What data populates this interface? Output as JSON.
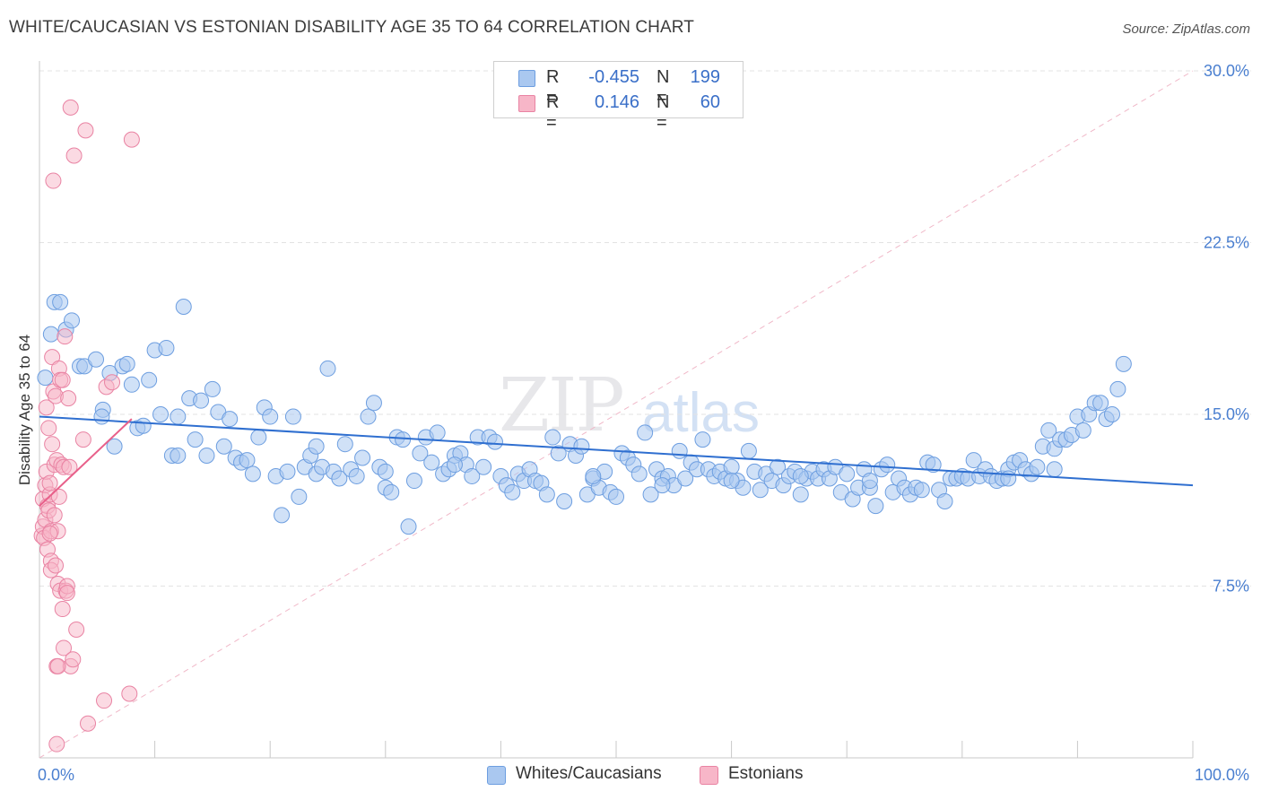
{
  "title": "WHITE/CAUCASIAN VS ESTONIAN DISABILITY AGE 35 TO 64 CORRELATION CHART",
  "source": "Source: ZipAtlas.com",
  "watermark": {
    "zip": "ZIP",
    "atlas": "atlas"
  },
  "legend": {
    "rows": [
      {
        "r_label": "R =",
        "r_value": "-0.455",
        "n_label": "N =",
        "n_value": "199",
        "color": "#aac8f0",
        "border": "#6d9ee0"
      },
      {
        "r_label": "R =",
        "r_value": "0.146",
        "n_label": "N =",
        "n_value": "60",
        "color": "#f7b6c8",
        "border": "#e983a3"
      }
    ]
  },
  "bottom_legend": [
    {
      "label": "Whites/Caucasians",
      "color": "#aac8f0",
      "border": "#6d9ee0"
    },
    {
      "label": "Estonians",
      "color": "#f7b6c8",
      "border": "#e983a3"
    }
  ],
  "chart_data": {
    "type": "scatter",
    "title": "WHITE/CAUCASIAN VS ESTONIAN DISABILITY AGE 35 TO 64 CORRELATION CHART",
    "xlabel": "",
    "ylabel": "Disability Age 35 to 64",
    "xlim": [
      0,
      100
    ],
    "ylim": [
      0,
      30
    ],
    "x_tick_labels": [
      "0.0%",
      "100.0%"
    ],
    "y_ticks": [
      7.5,
      15.0,
      22.5,
      30.0
    ],
    "y_tick_labels": [
      "7.5%",
      "15.0%",
      "22.5%",
      "30.0%"
    ],
    "grid": "horizontal dashed",
    "legend_position": "top-center",
    "series": [
      {
        "name": "Whites/Caucasians",
        "color": "#6d9ee0",
        "fill": "#aac8f0",
        "trend": {
          "x": [
            0,
            100
          ],
          "y": [
            14.9,
            11.9
          ]
        },
        "points": [
          [
            0.5,
            16.6
          ],
          [
            1.0,
            18.5
          ],
          [
            1.3,
            19.9
          ],
          [
            1.8,
            19.9
          ],
          [
            2.3,
            18.7
          ],
          [
            2.8,
            19.1
          ],
          [
            3.5,
            17.1
          ],
          [
            3.9,
            17.1
          ],
          [
            4.9,
            17.4
          ],
          [
            5.5,
            15.2
          ],
          [
            5.4,
            14.9
          ],
          [
            6.1,
            16.8
          ],
          [
            6.5,
            13.6
          ],
          [
            7.2,
            17.1
          ],
          [
            7.6,
            17.2
          ],
          [
            8.0,
            16.3
          ],
          [
            8.5,
            14.4
          ],
          [
            9.0,
            14.5
          ],
          [
            9.5,
            16.5
          ],
          [
            10.0,
            17.8
          ],
          [
            10.5,
            15.0
          ],
          [
            11.0,
            17.9
          ],
          [
            11.5,
            13.2
          ],
          [
            12.0,
            14.9
          ],
          [
            12.5,
            19.7
          ],
          [
            13.0,
            15.7
          ],
          [
            13.5,
            13.9
          ],
          [
            14.0,
            15.6
          ],
          [
            14.5,
            13.2
          ],
          [
            15.0,
            16.1
          ],
          [
            15.5,
            15.1
          ],
          [
            16.0,
            13.6
          ],
          [
            16.5,
            14.8
          ],
          [
            17.0,
            13.1
          ],
          [
            17.5,
            12.9
          ],
          [
            18.0,
            13.0
          ],
          [
            18.5,
            12.4
          ],
          [
            19.0,
            14.0
          ],
          [
            19.5,
            15.3
          ],
          [
            20.0,
            14.9
          ],
          [
            20.5,
            12.3
          ],
          [
            21.0,
            10.6
          ],
          [
            21.5,
            12.5
          ],
          [
            22.0,
            14.9
          ],
          [
            22.5,
            11.4
          ],
          [
            23.0,
            12.7
          ],
          [
            23.5,
            13.2
          ],
          [
            24.0,
            12.4
          ],
          [
            24.5,
            12.7
          ],
          [
            25.0,
            17.0
          ],
          [
            25.5,
            12.5
          ],
          [
            26.0,
            12.2
          ],
          [
            26.5,
            13.7
          ],
          [
            27.0,
            12.6
          ],
          [
            27.5,
            12.3
          ],
          [
            28.0,
            13.1
          ],
          [
            28.5,
            14.9
          ],
          [
            29.0,
            15.5
          ],
          [
            29.5,
            12.7
          ],
          [
            30.0,
            11.8
          ],
          [
            30.5,
            11.6
          ],
          [
            31.0,
            14.0
          ],
          [
            31.5,
            13.9
          ],
          [
            32.0,
            10.1
          ],
          [
            32.5,
            12.1
          ],
          [
            33.0,
            13.3
          ],
          [
            33.5,
            14.0
          ],
          [
            34.0,
            12.9
          ],
          [
            34.5,
            14.2
          ],
          [
            35.0,
            12.4
          ],
          [
            35.5,
            12.6
          ],
          [
            36.0,
            13.2
          ],
          [
            36.5,
            13.3
          ],
          [
            37.0,
            12.8
          ],
          [
            37.5,
            12.3
          ],
          [
            38.0,
            14.0
          ],
          [
            38.5,
            12.7
          ],
          [
            39.0,
            14.0
          ],
          [
            39.5,
            13.8
          ],
          [
            40.0,
            12.3
          ],
          [
            40.5,
            11.9
          ],
          [
            41.0,
            11.6
          ],
          [
            41.5,
            12.4
          ],
          [
            42.0,
            12.1
          ],
          [
            42.5,
            12.6
          ],
          [
            43.0,
            12.1
          ],
          [
            43.5,
            12.0
          ],
          [
            44.0,
            11.5
          ],
          [
            44.5,
            14.0
          ],
          [
            45.0,
            13.3
          ],
          [
            45.5,
            11.2
          ],
          [
            46.0,
            13.7
          ],
          [
            46.5,
            13.2
          ],
          [
            47.0,
            13.6
          ],
          [
            47.5,
            11.5
          ],
          [
            48.0,
            12.2
          ],
          [
            48.5,
            11.8
          ],
          [
            49.0,
            12.5
          ],
          [
            49.5,
            11.6
          ],
          [
            50.0,
            11.4
          ],
          [
            50.5,
            13.3
          ],
          [
            51.0,
            13.1
          ],
          [
            51.5,
            12.8
          ],
          [
            52.0,
            12.4
          ],
          [
            52.5,
            14.2
          ],
          [
            53.0,
            11.5
          ],
          [
            53.5,
            12.6
          ],
          [
            54.0,
            12.2
          ],
          [
            54.5,
            12.3
          ],
          [
            55.0,
            11.9
          ],
          [
            55.5,
            13.4
          ],
          [
            56.0,
            12.2
          ],
          [
            56.5,
            12.9
          ],
          [
            57.0,
            12.6
          ],
          [
            57.5,
            13.9
          ],
          [
            58.0,
            12.6
          ],
          [
            58.5,
            12.3
          ],
          [
            59.0,
            12.5
          ],
          [
            59.5,
            12.2
          ],
          [
            60.0,
            12.7
          ],
          [
            60.5,
            12.1
          ],
          [
            61.0,
            11.8
          ],
          [
            61.5,
            13.4
          ],
          [
            62.0,
            12.5
          ],
          [
            62.5,
            11.7
          ],
          [
            63.0,
            12.4
          ],
          [
            63.5,
            12.1
          ],
          [
            64.0,
            12.7
          ],
          [
            64.5,
            11.9
          ],
          [
            65.0,
            12.3
          ],
          [
            65.5,
            12.5
          ],
          [
            66.0,
            11.5
          ],
          [
            66.5,
            12.2
          ],
          [
            67.0,
            12.5
          ],
          [
            67.5,
            12.2
          ],
          [
            68.0,
            12.6
          ],
          [
            68.5,
            12.2
          ],
          [
            69.0,
            12.7
          ],
          [
            69.5,
            11.6
          ],
          [
            70.0,
            12.4
          ],
          [
            70.5,
            11.3
          ],
          [
            71.0,
            11.8
          ],
          [
            71.5,
            12.6
          ],
          [
            72.0,
            11.8
          ],
          [
            72.5,
            11.0
          ],
          [
            73.0,
            12.6
          ],
          [
            73.5,
            12.8
          ],
          [
            74.0,
            11.6
          ],
          [
            74.5,
            12.2
          ],
          [
            75.0,
            11.8
          ],
          [
            75.5,
            11.5
          ],
          [
            76.0,
            11.8
          ],
          [
            76.5,
            11.7
          ],
          [
            77.0,
            12.9
          ],
          [
            77.5,
            12.8
          ],
          [
            78.0,
            11.7
          ],
          [
            78.5,
            11.2
          ],
          [
            79.0,
            12.2
          ],
          [
            79.5,
            12.2
          ],
          [
            80.0,
            12.3
          ],
          [
            80.5,
            12.2
          ],
          [
            81.0,
            13.0
          ],
          [
            81.5,
            12.3
          ],
          [
            82.0,
            12.6
          ],
          [
            82.5,
            12.3
          ],
          [
            83.0,
            12.1
          ],
          [
            83.5,
            12.2
          ],
          [
            84.0,
            12.6
          ],
          [
            84.5,
            12.9
          ],
          [
            85.0,
            13.0
          ],
          [
            85.5,
            12.6
          ],
          [
            86.0,
            12.4
          ],
          [
            86.5,
            12.7
          ],
          [
            87.0,
            13.6
          ],
          [
            87.5,
            14.3
          ],
          [
            88.0,
            13.5
          ],
          [
            88.5,
            13.9
          ],
          [
            89.0,
            13.9
          ],
          [
            89.5,
            14.1
          ],
          [
            90.0,
            14.9
          ],
          [
            90.5,
            14.3
          ],
          [
            91.0,
            15.0
          ],
          [
            91.5,
            15.5
          ],
          [
            92.0,
            15.5
          ],
          [
            92.5,
            14.8
          ],
          [
            93.0,
            15.0
          ],
          [
            93.5,
            16.1
          ],
          [
            94.0,
            17.2
          ],
          [
            12.0,
            13.2
          ],
          [
            24.0,
            13.6
          ],
          [
            36.0,
            12.8
          ],
          [
            48.0,
            12.3
          ],
          [
            60.0,
            12.1
          ],
          [
            72.0,
            12.1
          ],
          [
            84.0,
            12.2
          ],
          [
            88.0,
            12.6
          ],
          [
            30.0,
            12.5
          ],
          [
            54.0,
            11.9
          ],
          [
            66.0,
            12.3
          ]
        ]
      },
      {
        "name": "Estonians",
        "color": "#e983a3",
        "fill": "#f7b6c8",
        "trend": {
          "x": [
            0,
            8
          ],
          "y": [
            11.0,
            14.8
          ]
        },
        "points": [
          [
            0.2,
            9.7
          ],
          [
            0.3,
            10.1
          ],
          [
            0.3,
            11.3
          ],
          [
            0.4,
            9.6
          ],
          [
            0.5,
            10.4
          ],
          [
            0.5,
            11.9
          ],
          [
            0.6,
            12.5
          ],
          [
            0.6,
            15.3
          ],
          [
            0.7,
            9.1
          ],
          [
            0.7,
            11.0
          ],
          [
            0.8,
            14.4
          ],
          [
            0.8,
            10.8
          ],
          [
            0.9,
            11.5
          ],
          [
            0.9,
            12.0
          ],
          [
            1.0,
            8.6
          ],
          [
            1.0,
            8.2
          ],
          [
            1.0,
            9.9
          ],
          [
            1.1,
            17.5
          ],
          [
            1.1,
            13.7
          ],
          [
            1.2,
            16.0
          ],
          [
            1.2,
            25.2
          ],
          [
            1.3,
            12.8
          ],
          [
            1.3,
            10.6
          ],
          [
            1.4,
            15.8
          ],
          [
            1.4,
            8.4
          ],
          [
            1.5,
            4.0
          ],
          [
            1.5,
            13.0
          ],
          [
            1.6,
            7.6
          ],
          [
            1.6,
            9.9
          ],
          [
            1.7,
            17.0
          ],
          [
            1.7,
            11.4
          ],
          [
            1.8,
            16.5
          ],
          [
            1.8,
            7.3
          ],
          [
            1.9,
            12.8
          ],
          [
            2.0,
            6.5
          ],
          [
            2.0,
            16.5
          ],
          [
            2.1,
            12.7
          ],
          [
            2.1,
            4.8
          ],
          [
            2.2,
            18.4
          ],
          [
            2.3,
            7.3
          ],
          [
            2.4,
            7.5
          ],
          [
            2.4,
            7.2
          ],
          [
            2.5,
            15.7
          ],
          [
            2.6,
            12.7
          ],
          [
            2.7,
            4.0
          ],
          [
            2.7,
            28.4
          ],
          [
            2.9,
            4.3
          ],
          [
            3.0,
            26.3
          ],
          [
            3.2,
            5.6
          ],
          [
            3.8,
            13.9
          ],
          [
            4.0,
            27.4
          ],
          [
            4.2,
            1.5
          ],
          [
            5.6,
            2.5
          ],
          [
            5.8,
            16.2
          ],
          [
            6.3,
            16.4
          ],
          [
            7.8,
            2.8
          ],
          [
            8.0,
            27.0
          ],
          [
            1.5,
            0.6
          ],
          [
            0.9,
            9.8
          ],
          [
            1.6,
            4.0
          ]
        ]
      }
    ]
  }
}
